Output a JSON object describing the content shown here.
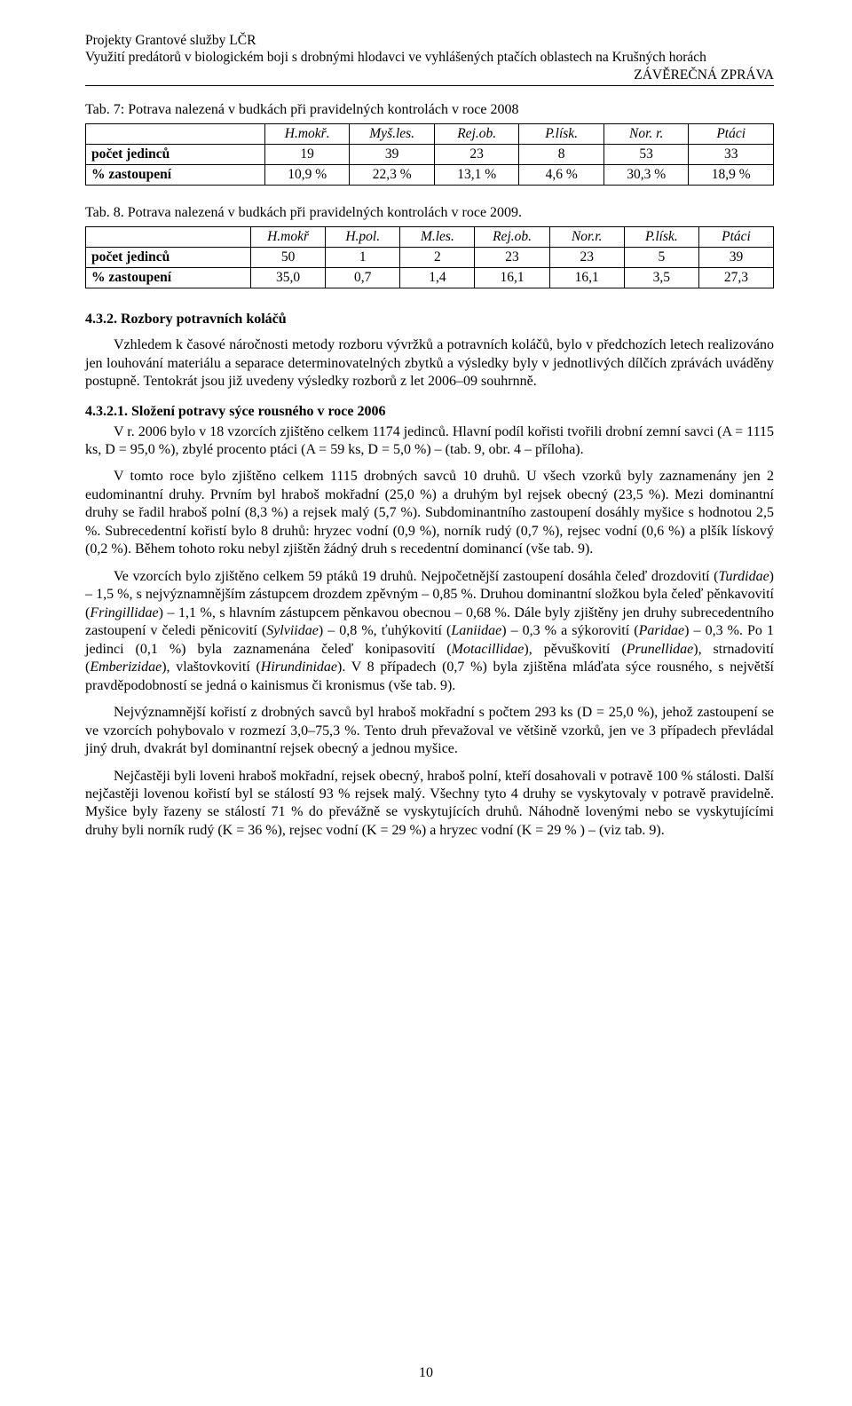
{
  "header": {
    "line1": "Projekty Grantové služby LČR",
    "line2": "Využití predátorů v biologickém boji s drobnými hlodavci ve vyhlášených ptačích oblastech na Krušných horách",
    "line3": "ZÁVĚREČNÁ ZPRÁVA"
  },
  "table7": {
    "caption": "Tab. 7: Potrava nalezená v budkách při pravidelných kontrolách v roce 2008",
    "columns": [
      "",
      "H.mokř.",
      "Myš.les.",
      "Rej.ob.",
      "P.lísk.",
      "Nor. r.",
      "Ptáci"
    ],
    "row1_label": "počet jedinců",
    "row1": [
      "19",
      "39",
      "23",
      "8",
      "53",
      "33"
    ],
    "row2_label": "% zastoupení",
    "row2": [
      "10,9 %",
      "22,3 %",
      "13,1 %",
      "4,6 %",
      "30,3 %",
      "18,9 %"
    ],
    "col_widths": [
      "26%",
      "12.3%",
      "12.3%",
      "12.3%",
      "12.3%",
      "12.3%",
      "12.3%"
    ]
  },
  "table8": {
    "caption": "Tab. 8. Potrava nalezená v budkách při pravidelných kontrolách v roce 2009.",
    "columns": [
      "",
      "H.mokř",
      "H.pol.",
      "M.les.",
      "Rej.ob.",
      "Nor.r.",
      "P.lísk.",
      "Ptáci"
    ],
    "row1_label": "počet jedinců",
    "row1": [
      "50",
      "1",
      "2",
      "23",
      "23",
      "5",
      "39"
    ],
    "row2_label": "% zastoupení",
    "row2": [
      "35,0",
      "0,7",
      "1,4",
      "16,1",
      "16,1",
      "3,5",
      "27,3"
    ],
    "col_widths": [
      "24%",
      "10.86%",
      "10.86%",
      "10.86%",
      "10.86%",
      "10.86%",
      "10.86%",
      "10.86%"
    ]
  },
  "sec_432": {
    "heading": "4.3.2. Rozbory potravních koláčů",
    "para": "Vzhledem k časové náročnosti metody rozboru vývržků a potravních koláčů, bylo v předchozích letech realizováno jen louhování materiálu a separace determinovatelných zbytků a výsledky byly v jednotlivých dílčích zprávách uváděny postupně. Tentokrát jsou již uvedeny výsledky rozborů z let 2006–09 souhrnně."
  },
  "sec_4321": {
    "heading": "4.3.2.1. Složení potravy sýce rousného v roce 2006",
    "p1": "V r. 2006 bylo v 18 vzorcích zjištěno celkem 1174 jedinců. Hlavní podíl kořisti tvořili drobní zemní savci (A = 1115 ks, D = 95,0 %), zbylé procento ptáci (A = 59 ks, D = 5,0 %) – (tab. 9, obr. 4 – příloha).",
    "p2a": "V tomto roce bylo zjištěno celkem 1115 drobných savců 10 druhů. U všech vzorků byly zaznamenány jen 2 eudominantní druhy. Prvním byl hraboš mokřadní (25,0 %) a druhým byl rejsek obecný (23,5 %). Mezi dominantní druhy se řadil hraboš polní (8,3 %) a rejsek malý (5,7 %). Subdominantního zastoupení dosáhly myšice s hodnotou 2,5 %. Subrecedentní kořistí bylo 8 druhů: hryzec vodní (0,9 %), norník rudý (0,7 %), rejsec vodní (0,6 %) a plšík lískový (0,2 %). Během tohoto roku nebyl zjištěn žádný druh s recedentní dominancí (vše tab. 9).",
    "p3a": "Ve vzorcích bylo zjištěno celkem 59 ptáků 19 druhů. Nejpočetnější zastoupení dosáhla čeleď drozdovití (",
    "turdidae": "Turdidae",
    "p3b": ") – 1,5 %, s nejvýznamnějším zástupcem drozdem zpěvným – 0,85 %. Druhou dominantní složkou byla čeleď pěnkavovití (",
    "fringillidae": "Fringillidae",
    "p3c": ") – 1,1 %, s hlavním zástupcem pěnkavou obecnou – 0,68 %. Dále byly zjištěny jen druhy subrecedentního zastoupení v čeledi pěnicovití (",
    "sylviidae": "Sylviidae",
    "p3d": ") – 0,8 %, ťuhýkovití (",
    "laniidae": "Laniidae",
    "p3e": ") – 0,3 % a sýkorovití (",
    "paridae": "Paridae",
    "p3f": ") – 0,3 %. Po 1 jedinci (0,1 %) byla zaznamenána čeleď konipasovití (",
    "motacillidae": "Motacillidae",
    "p3g": "), pěvuškovití (",
    "prunellidae": "Prunellidae",
    "p3h": "), strnadovití (",
    "emberizidae": "Emberizidae",
    "p3i": "), vlaštovkovití (",
    "hirundinidae": "Hirundinidae",
    "p3j": "). V 8 případech (0,7 %) byla zjištěna mláďata sýce rousného, s největší pravděpodobností se jedná o kainismus či kronismus (vše tab. 9).",
    "p4": "Nejvýznamnější kořistí z drobných savců byl hraboš mokřadní s počtem 293 ks (D = 25,0 %), jehož zastoupení se ve vzorcích pohybovalo v rozmezí 3,0–75,3 %. Tento druh převažoval ve většině vzorků, jen ve 3 případech převládal jiný druh, dvakrát byl dominantní rejsek obecný a jednou myšice.",
    "p5": "Nejčastěji byli loveni hraboš mokřadní, rejsek obecný, hraboš polní, kteří dosahovali v potravě 100 % stálosti. Další nejčastěji lovenou kořistí byl se stálostí 93 % rejsek malý. Všechny tyto 4 druhy se vyskytovaly v potravě pravidelně. Myšice byly řazeny se stálostí 71 % do převážně se vyskytujících druhů. Náhodně lovenými nebo se vyskytujícími druhy byli norník rudý (K = 36 %), rejsec vodní (K = 29 %) a hryzec vodní (K = 29 % ) – (viz tab. 9)."
  },
  "page_number": "10",
  "colors": {
    "text": "#000000",
    "background": "#ffffff",
    "rule": "#000000"
  }
}
